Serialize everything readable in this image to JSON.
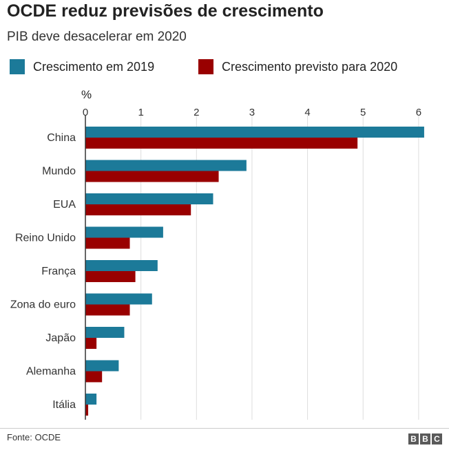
{
  "chart_data": {
    "type": "bar",
    "orientation": "horizontal",
    "title": "OCDE reduz previsões de crescimento",
    "subtitle": "PIB deve desacelerar em 2020",
    "axis_unit_label": "%",
    "xlim": [
      0,
      6.2
    ],
    "x_ticks": [
      "0",
      "1",
      "2",
      "3",
      "4",
      "5",
      "6"
    ],
    "grid": true,
    "legend_position": "top",
    "categories": [
      "China",
      "Mundo",
      "EUA",
      "Reino Unido",
      "França",
      "Zona do euro",
      "Japão",
      "Alemanha",
      "Itália"
    ],
    "series": [
      {
        "name": "Crescimento em 2019",
        "color": "#1c7a99",
        "values": [
          6.1,
          2.9,
          2.3,
          1.4,
          1.3,
          1.2,
          0.7,
          0.6,
          0.2
        ]
      },
      {
        "name": "Crescimento previsto para 2020",
        "color": "#990000",
        "values": [
          4.9,
          2.4,
          1.9,
          0.8,
          0.9,
          0.8,
          0.2,
          0.3,
          0.05
        ]
      }
    ]
  },
  "footer": {
    "source": "Fonte: OCDE",
    "logo_letters": [
      "B",
      "B",
      "C"
    ]
  }
}
